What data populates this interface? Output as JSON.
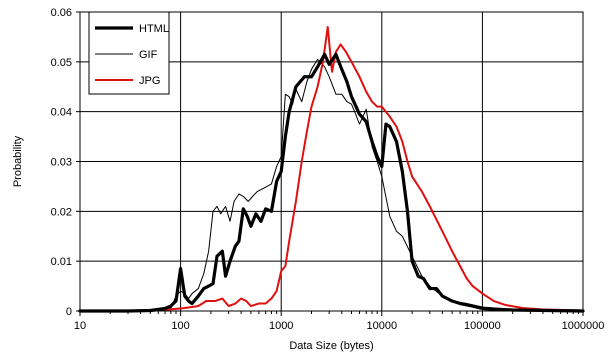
{
  "chart_data": {
    "type": "line",
    "title": "",
    "xlabel": "Data Size (bytes)",
    "ylabel": "Probability",
    "x_scale": "log",
    "xlim": [
      10,
      1000000
    ],
    "ylim": [
      0,
      0.06
    ],
    "grid": true,
    "legend_placement": "top-left",
    "x_ticks": [
      10,
      100,
      1000,
      10000,
      100000,
      1000000
    ],
    "x_tick_labels": [
      "10",
      "100",
      "1000",
      "10000",
      "100000",
      "1000000"
    ],
    "y_ticks": [
      0,
      0.01,
      0.02,
      0.03,
      0.04,
      0.05,
      0.06
    ],
    "y_tick_labels": [
      "0",
      "0.01",
      "0.02",
      "0.03",
      "0.04",
      "0.05",
      "0.06"
    ],
    "series": [
      {
        "name": "HTML",
        "color": "#000000",
        "line_width": "thick",
        "points": [
          [
            10,
            0
          ],
          [
            30,
            0
          ],
          [
            50,
            0.0001
          ],
          [
            70,
            0.0005
          ],
          [
            80,
            0.001
          ],
          [
            90,
            0.002
          ],
          [
            100,
            0.0085
          ],
          [
            110,
            0.003
          ],
          [
            120,
            0.002
          ],
          [
            130,
            0.0015
          ],
          [
            150,
            0.003
          ],
          [
            170,
            0.0045
          ],
          [
            190,
            0.005
          ],
          [
            210,
            0.0055
          ],
          [
            230,
            0.011
          ],
          [
            260,
            0.012
          ],
          [
            280,
            0.007
          ],
          [
            310,
            0.01
          ],
          [
            350,
            0.013
          ],
          [
            380,
            0.014
          ],
          [
            420,
            0.0205
          ],
          [
            460,
            0.019
          ],
          [
            500,
            0.017
          ],
          [
            560,
            0.0195
          ],
          [
            630,
            0.018
          ],
          [
            700,
            0.0205
          ],
          [
            800,
            0.02
          ],
          [
            900,
            0.026
          ],
          [
            1000,
            0.028
          ],
          [
            1100,
            0.035
          ],
          [
            1200,
            0.04
          ],
          [
            1400,
            0.045
          ],
          [
            1700,
            0.047
          ],
          [
            2000,
            0.047
          ],
          [
            2300,
            0.049
          ],
          [
            2700,
            0.0515
          ],
          [
            3000,
            0.0495
          ],
          [
            3500,
            0.0515
          ],
          [
            4000,
            0.0485
          ],
          [
            4500,
            0.046
          ],
          [
            5000,
            0.043
          ],
          [
            6000,
            0.0395
          ],
          [
            7000,
            0.038
          ],
          [
            8000,
            0.034
          ],
          [
            9000,
            0.031
          ],
          [
            10000,
            0.029
          ],
          [
            11000,
            0.0375
          ],
          [
            12000,
            0.037
          ],
          [
            14000,
            0.034
          ],
          [
            16000,
            0.028
          ],
          [
            18000,
            0.02
          ],
          [
            20000,
            0.01
          ],
          [
            23000,
            0.007
          ],
          [
            26000,
            0.0065
          ],
          [
            30000,
            0.0045
          ],
          [
            35000,
            0.0045
          ],
          [
            40000,
            0.003
          ],
          [
            50000,
            0.002
          ],
          [
            60000,
            0.0015
          ],
          [
            80000,
            0.001
          ],
          [
            100000,
            0.0005
          ],
          [
            200000,
            0.0002
          ],
          [
            1000000,
            0
          ]
        ]
      },
      {
        "name": "GIF",
        "color": "#000000",
        "line_width": "thin",
        "points": [
          [
            10,
            0
          ],
          [
            40,
            0
          ],
          [
            60,
            0.0002
          ],
          [
            80,
            0.0005
          ],
          [
            90,
            0.003
          ],
          [
            100,
            0.004
          ],
          [
            110,
            0.0035
          ],
          [
            120,
            0.0025
          ],
          [
            130,
            0.0035
          ],
          [
            150,
            0.0045
          ],
          [
            170,
            0.0075
          ],
          [
            190,
            0.012
          ],
          [
            210,
            0.02
          ],
          [
            230,
            0.021
          ],
          [
            250,
            0.0195
          ],
          [
            280,
            0.021
          ],
          [
            310,
            0.018
          ],
          [
            340,
            0.022
          ],
          [
            380,
            0.0235
          ],
          [
            420,
            0.023
          ],
          [
            470,
            0.022
          ],
          [
            520,
            0.023
          ],
          [
            580,
            0.024
          ],
          [
            650,
            0.0245
          ],
          [
            720,
            0.025
          ],
          [
            800,
            0.0255
          ],
          [
            900,
            0.029
          ],
          [
            1000,
            0.031
          ],
          [
            1100,
            0.0435
          ],
          [
            1200,
            0.043
          ],
          [
            1300,
            0.0415
          ],
          [
            1400,
            0.0445
          ],
          [
            1600,
            0.042
          ],
          [
            1800,
            0.046
          ],
          [
            2000,
            0.0485
          ],
          [
            2300,
            0.0505
          ],
          [
            2700,
            0.049
          ],
          [
            3000,
            0.047
          ],
          [
            3500,
            0.0435
          ],
          [
            4000,
            0.0435
          ],
          [
            4500,
            0.042
          ],
          [
            5000,
            0.0415
          ],
          [
            5500,
            0.0395
          ],
          [
            6000,
            0.0375
          ],
          [
            7000,
            0.0405
          ],
          [
            8000,
            0.033
          ],
          [
            9000,
            0.03
          ],
          [
            10000,
            0.027
          ],
          [
            12000,
            0.019
          ],
          [
            14000,
            0.016
          ],
          [
            16000,
            0.015
          ],
          [
            20000,
            0.011
          ],
          [
            25000,
            0.007
          ],
          [
            30000,
            0.005
          ],
          [
            40000,
            0.003
          ],
          [
            50000,
            0.002
          ],
          [
            70000,
            0.0015
          ],
          [
            100000,
            0.0008
          ],
          [
            200000,
            0.0003
          ],
          [
            1000000,
            0
          ]
        ]
      },
      {
        "name": "JPG",
        "color": "#e01010",
        "line_width": "medium",
        "points": [
          [
            10,
            0
          ],
          [
            50,
            0
          ],
          [
            100,
            0.0005
          ],
          [
            130,
            0.0008
          ],
          [
            150,
            0.001
          ],
          [
            180,
            0.002
          ],
          [
            220,
            0.002
          ],
          [
            260,
            0.0025
          ],
          [
            300,
            0.001
          ],
          [
            350,
            0.0015
          ],
          [
            400,
            0.0025
          ],
          [
            450,
            0.002
          ],
          [
            500,
            0.001
          ],
          [
            600,
            0.0015
          ],
          [
            700,
            0.0015
          ],
          [
            800,
            0.0025
          ],
          [
            900,
            0.004
          ],
          [
            1000,
            0.008
          ],
          [
            1100,
            0.009
          ],
          [
            1200,
            0.014
          ],
          [
            1400,
            0.022
          ],
          [
            1600,
            0.03
          ],
          [
            1800,
            0.036
          ],
          [
            2000,
            0.041
          ],
          [
            2300,
            0.045
          ],
          [
            2600,
            0.05
          ],
          [
            2900,
            0.057
          ],
          [
            3200,
            0.048
          ],
          [
            3500,
            0.052
          ],
          [
            3900,
            0.0535
          ],
          [
            4400,
            0.052
          ],
          [
            5000,
            0.05
          ],
          [
            6000,
            0.047
          ],
          [
            7000,
            0.044
          ],
          [
            8000,
            0.042
          ],
          [
            9000,
            0.041
          ],
          [
            10000,
            0.041
          ],
          [
            12000,
            0.039
          ],
          [
            14000,
            0.037
          ],
          [
            16000,
            0.034
          ],
          [
            18000,
            0.03
          ],
          [
            20000,
            0.027
          ],
          [
            25000,
            0.024
          ],
          [
            30000,
            0.021
          ],
          [
            40000,
            0.016
          ],
          [
            50000,
            0.012
          ],
          [
            60000,
            0.009
          ],
          [
            70000,
            0.0065
          ],
          [
            80000,
            0.005
          ],
          [
            100000,
            0.0035
          ],
          [
            130000,
            0.002
          ],
          [
            170000,
            0.0012
          ],
          [
            250000,
            0.0006
          ],
          [
            400000,
            0.0003
          ],
          [
            1000000,
            0.0001
          ]
        ]
      }
    ]
  },
  "colors": {
    "html": "#000000",
    "gif": "#000000",
    "jpg": "#e01010",
    "grid": "#000000",
    "background": "#ffffff"
  }
}
